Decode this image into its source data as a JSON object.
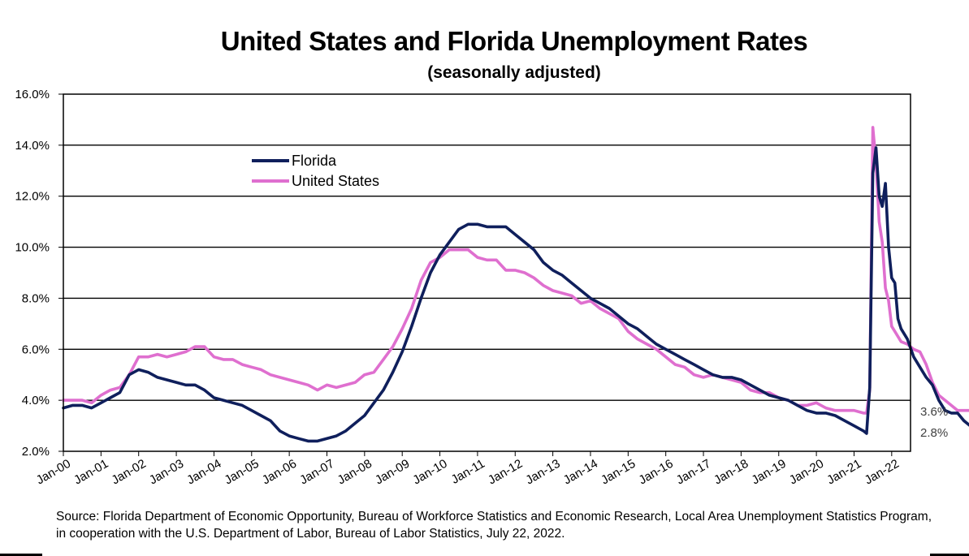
{
  "title": "United States and Florida Unemployment Rates",
  "subtitle": "(seasonally adjusted)",
  "source": "Source:  Florida Department of Economic Opportunity, Bureau of Workforce Statistics and Economic Research, Local Area Unemployment Statistics Program, in cooperation with the U.S. Department of Labor, Bureau of Labor Statistics, July 22, 2022.",
  "colors": {
    "florida": "#0f1f5c",
    "united_states": "#df6fcf",
    "grid": "#000000"
  },
  "chart_data": {
    "type": "line",
    "title": "United States and Florida Unemployment Rates",
    "subtitle": "(seasonally adjusted)",
    "x_range": [
      "Jan-00",
      "Jun-22"
    ],
    "ylim": [
      2.0,
      16.0
    ],
    "y_ticks": [
      "2.0%",
      "4.0%",
      "6.0%",
      "8.0%",
      "10.0%",
      "12.0%",
      "14.0%",
      "16.0%"
    ],
    "x_ticks": [
      "Jan-00",
      "Jan-01",
      "Jan-02",
      "Jan-03",
      "Jan-04",
      "Jan-05",
      "Jan-06",
      "Jan-07",
      "Jan-08",
      "Jan-09",
      "Jan-10",
      "Jan-11",
      "Jan-12",
      "Jan-13",
      "Jan-14",
      "Jan-15",
      "Jan-16",
      "Jan-17",
      "Jan-18",
      "Jan-19",
      "Jan-20",
      "Jan-21",
      "Jan-22"
    ],
    "grid": "horizontal",
    "legend": "top-left",
    "series": [
      {
        "name": "Florida",
        "end_label": "2.8%",
        "points": [
          [
            0,
            3.7
          ],
          [
            3,
            3.8
          ],
          [
            6,
            3.8
          ],
          [
            9,
            3.7
          ],
          [
            12,
            3.9
          ],
          [
            15,
            4.1
          ],
          [
            18,
            4.3
          ],
          [
            21,
            5.0
          ],
          [
            24,
            5.2
          ],
          [
            27,
            5.1
          ],
          [
            30,
            4.9
          ],
          [
            33,
            4.8
          ],
          [
            36,
            4.7
          ],
          [
            39,
            4.6
          ],
          [
            42,
            4.6
          ],
          [
            45,
            4.4
          ],
          [
            48,
            4.1
          ],
          [
            51,
            4.0
          ],
          [
            54,
            3.9
          ],
          [
            57,
            3.8
          ],
          [
            60,
            3.6
          ],
          [
            63,
            3.4
          ],
          [
            66,
            3.2
          ],
          [
            69,
            2.8
          ],
          [
            72,
            2.6
          ],
          [
            75,
            2.5
          ],
          [
            78,
            2.4
          ],
          [
            81,
            2.4
          ],
          [
            84,
            2.5
          ],
          [
            87,
            2.6
          ],
          [
            90,
            2.8
          ],
          [
            93,
            3.1
          ],
          [
            96,
            3.4
          ],
          [
            99,
            3.9
          ],
          [
            102,
            4.4
          ],
          [
            105,
            5.1
          ],
          [
            108,
            5.9
          ],
          [
            111,
            6.9
          ],
          [
            114,
            8.0
          ],
          [
            117,
            9.0
          ],
          [
            120,
            9.7
          ],
          [
            123,
            10.2
          ],
          [
            126,
            10.7
          ],
          [
            129,
            10.9
          ],
          [
            132,
            10.9
          ],
          [
            135,
            10.8
          ],
          [
            138,
            10.8
          ],
          [
            141,
            10.8
          ],
          [
            144,
            10.5
          ],
          [
            147,
            10.2
          ],
          [
            150,
            9.9
          ],
          [
            153,
            9.4
          ],
          [
            156,
            9.1
          ],
          [
            159,
            8.9
          ],
          [
            162,
            8.6
          ],
          [
            165,
            8.3
          ],
          [
            168,
            8.0
          ],
          [
            171,
            7.8
          ],
          [
            174,
            7.6
          ],
          [
            177,
            7.3
          ],
          [
            180,
            7.0
          ],
          [
            183,
            6.8
          ],
          [
            186,
            6.5
          ],
          [
            189,
            6.2
          ],
          [
            192,
            6.0
          ],
          [
            195,
            5.8
          ],
          [
            198,
            5.6
          ],
          [
            201,
            5.4
          ],
          [
            204,
            5.2
          ],
          [
            207,
            5.0
          ],
          [
            210,
            4.9
          ],
          [
            213,
            4.9
          ],
          [
            216,
            4.8
          ],
          [
            219,
            4.6
          ],
          [
            222,
            4.4
          ],
          [
            225,
            4.2
          ],
          [
            228,
            4.1
          ],
          [
            231,
            4.0
          ],
          [
            234,
            3.8
          ],
          [
            237,
            3.6
          ],
          [
            240,
            3.5
          ],
          [
            243,
            3.5
          ],
          [
            246,
            3.4
          ],
          [
            249,
            3.2
          ],
          [
            252,
            3.0
          ],
          [
            255,
            2.8
          ],
          [
            256,
            2.7
          ],
          [
            257,
            4.5
          ],
          [
            258,
            12.9
          ],
          [
            259,
            13.9
          ],
          [
            260,
            12.0
          ],
          [
            261,
            11.6
          ],
          [
            262,
            12.5
          ],
          [
            263,
            10.0
          ],
          [
            264,
            8.8
          ],
          [
            265,
            8.6
          ],
          [
            266,
            7.2
          ],
          [
            267,
            6.8
          ],
          [
            269,
            6.4
          ],
          [
            271,
            5.7
          ],
          [
            273,
            5.3
          ],
          [
            275,
            4.9
          ],
          [
            277,
            4.6
          ],
          [
            279,
            4.0
          ],
          [
            281,
            3.6
          ],
          [
            283,
            3.5
          ],
          [
            285,
            3.5
          ],
          [
            287,
            3.2
          ],
          [
            289,
            3.0
          ],
          [
            291,
            2.8
          ]
        ]
      },
      {
        "name": "United States",
        "end_label": "3.6%",
        "points": [
          [
            0,
            4.0
          ],
          [
            3,
            4.0
          ],
          [
            6,
            4.0
          ],
          [
            9,
            3.9
          ],
          [
            12,
            4.2
          ],
          [
            15,
            4.4
          ],
          [
            18,
            4.5
          ],
          [
            21,
            5.0
          ],
          [
            24,
            5.7
          ],
          [
            27,
            5.7
          ],
          [
            30,
            5.8
          ],
          [
            33,
            5.7
          ],
          [
            36,
            5.8
          ],
          [
            39,
            5.9
          ],
          [
            42,
            6.1
          ],
          [
            45,
            6.1
          ],
          [
            48,
            5.7
          ],
          [
            51,
            5.6
          ],
          [
            54,
            5.6
          ],
          [
            57,
            5.4
          ],
          [
            60,
            5.3
          ],
          [
            63,
            5.2
          ],
          [
            66,
            5.0
          ],
          [
            69,
            4.9
          ],
          [
            72,
            4.8
          ],
          [
            75,
            4.7
          ],
          [
            78,
            4.6
          ],
          [
            81,
            4.4
          ],
          [
            84,
            4.6
          ],
          [
            87,
            4.5
          ],
          [
            90,
            4.6
          ],
          [
            93,
            4.7
          ],
          [
            96,
            5.0
          ],
          [
            99,
            5.1
          ],
          [
            102,
            5.6
          ],
          [
            105,
            6.1
          ],
          [
            108,
            6.8
          ],
          [
            111,
            7.6
          ],
          [
            114,
            8.7
          ],
          [
            117,
            9.4
          ],
          [
            120,
            9.6
          ],
          [
            123,
            9.9
          ],
          [
            126,
            9.9
          ],
          [
            129,
            9.9
          ],
          [
            132,
            9.6
          ],
          [
            135,
            9.5
          ],
          [
            138,
            9.5
          ],
          [
            141,
            9.1
          ],
          [
            144,
            9.1
          ],
          [
            147,
            9.0
          ],
          [
            150,
            8.8
          ],
          [
            153,
            8.5
          ],
          [
            156,
            8.3
          ],
          [
            159,
            8.2
          ],
          [
            162,
            8.1
          ],
          [
            165,
            7.8
          ],
          [
            168,
            7.9
          ],
          [
            171,
            7.6
          ],
          [
            174,
            7.4
          ],
          [
            177,
            7.2
          ],
          [
            180,
            6.7
          ],
          [
            183,
            6.4
          ],
          [
            186,
            6.2
          ],
          [
            189,
            6.0
          ],
          [
            192,
            5.7
          ],
          [
            195,
            5.4
          ],
          [
            198,
            5.3
          ],
          [
            201,
            5.0
          ],
          [
            204,
            4.9
          ],
          [
            207,
            5.0
          ],
          [
            210,
            4.9
          ],
          [
            213,
            4.8
          ],
          [
            216,
            4.7
          ],
          [
            219,
            4.4
          ],
          [
            222,
            4.3
          ],
          [
            225,
            4.3
          ],
          [
            228,
            4.1
          ],
          [
            231,
            4.0
          ],
          [
            234,
            3.8
          ],
          [
            237,
            3.8
          ],
          [
            240,
            3.9
          ],
          [
            243,
            3.7
          ],
          [
            246,
            3.6
          ],
          [
            249,
            3.6
          ],
          [
            252,
            3.6
          ],
          [
            255,
            3.5
          ],
          [
            256,
            3.5
          ],
          [
            257,
            4.4
          ],
          [
            258,
            14.7
          ],
          [
            259,
            13.3
          ],
          [
            260,
            11.0
          ],
          [
            261,
            10.2
          ],
          [
            262,
            8.4
          ],
          [
            263,
            7.9
          ],
          [
            264,
            6.9
          ],
          [
            265,
            6.7
          ],
          [
            267,
            6.3
          ],
          [
            269,
            6.2
          ],
          [
            271,
            6.0
          ],
          [
            273,
            5.9
          ],
          [
            275,
            5.4
          ],
          [
            277,
            4.7
          ],
          [
            279,
            4.2
          ],
          [
            281,
            4.0
          ],
          [
            283,
            3.8
          ],
          [
            285,
            3.6
          ],
          [
            288,
            3.6
          ],
          [
            291,
            3.6
          ]
        ]
      }
    ]
  }
}
